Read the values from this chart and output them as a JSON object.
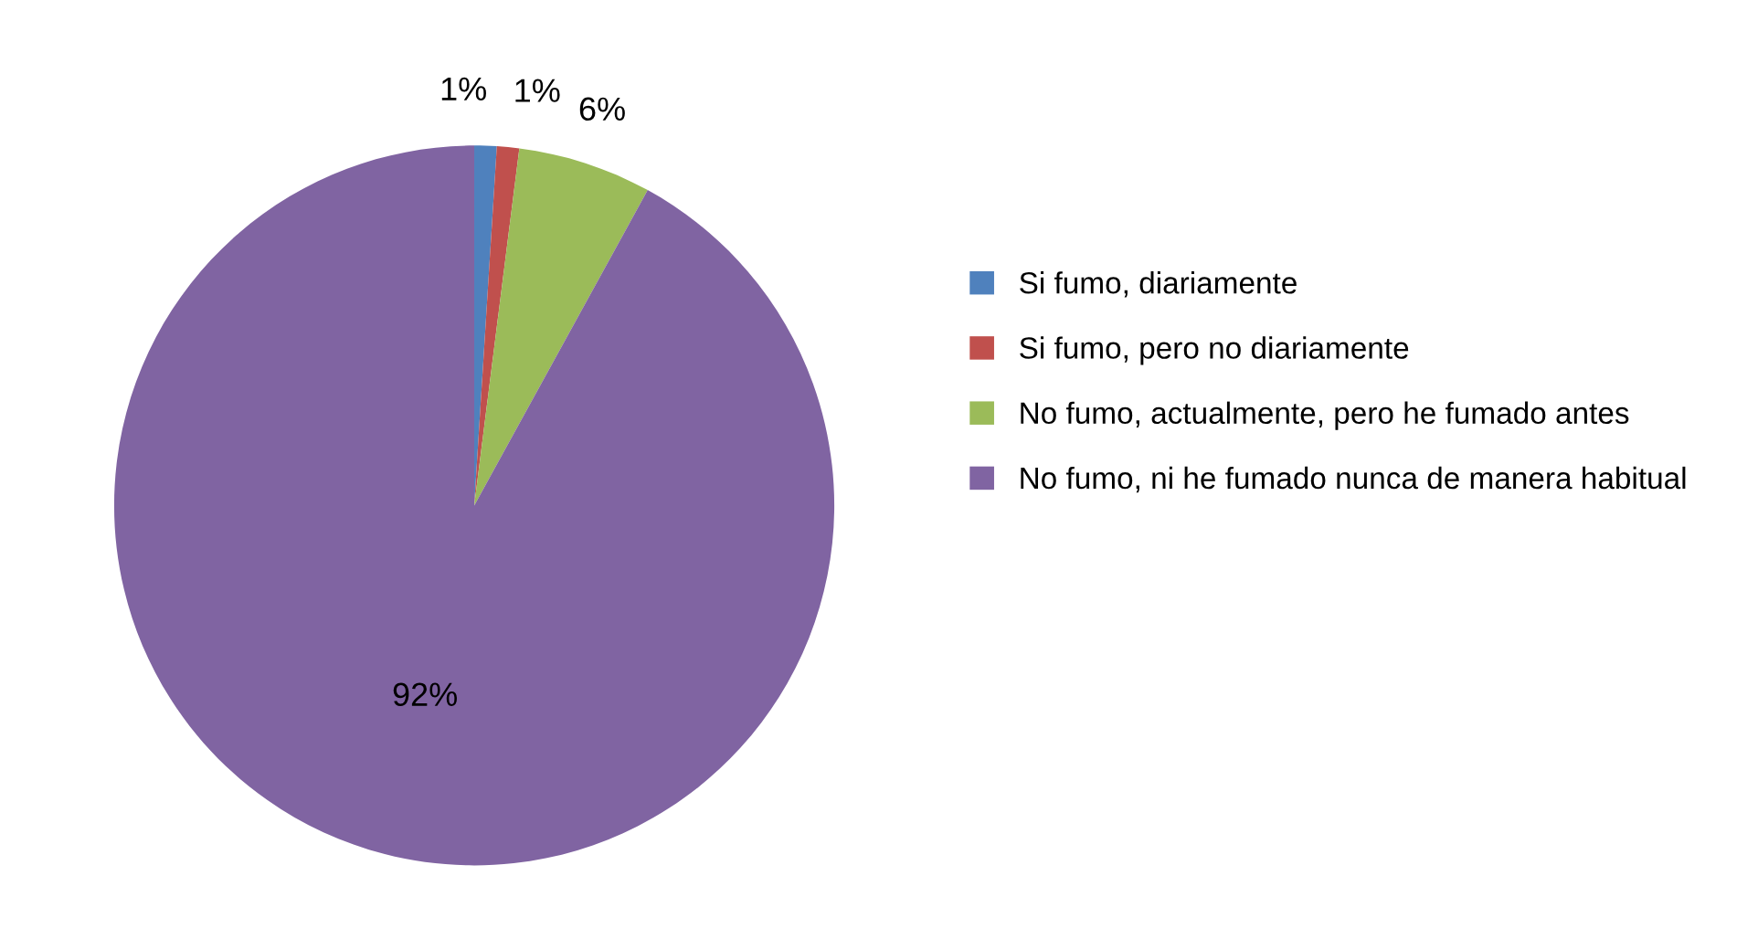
{
  "chart_data": {
    "type": "pie",
    "categories": [
      "Si fumo, diariamente",
      "Si fumo, pero no diariamente",
      "No fumo, actualmente, pero he fumado antes",
      "No fumo, ni he fumado nunca de manera habitual"
    ],
    "values": [
      1,
      1,
      6,
      92
    ],
    "colors": [
      "#4f81bd",
      "#c0504d",
      "#9bbb59",
      "#8064a2"
    ],
    "value_labels": [
      "1%",
      "1%",
      "6%",
      "92%"
    ],
    "legend": "right"
  }
}
